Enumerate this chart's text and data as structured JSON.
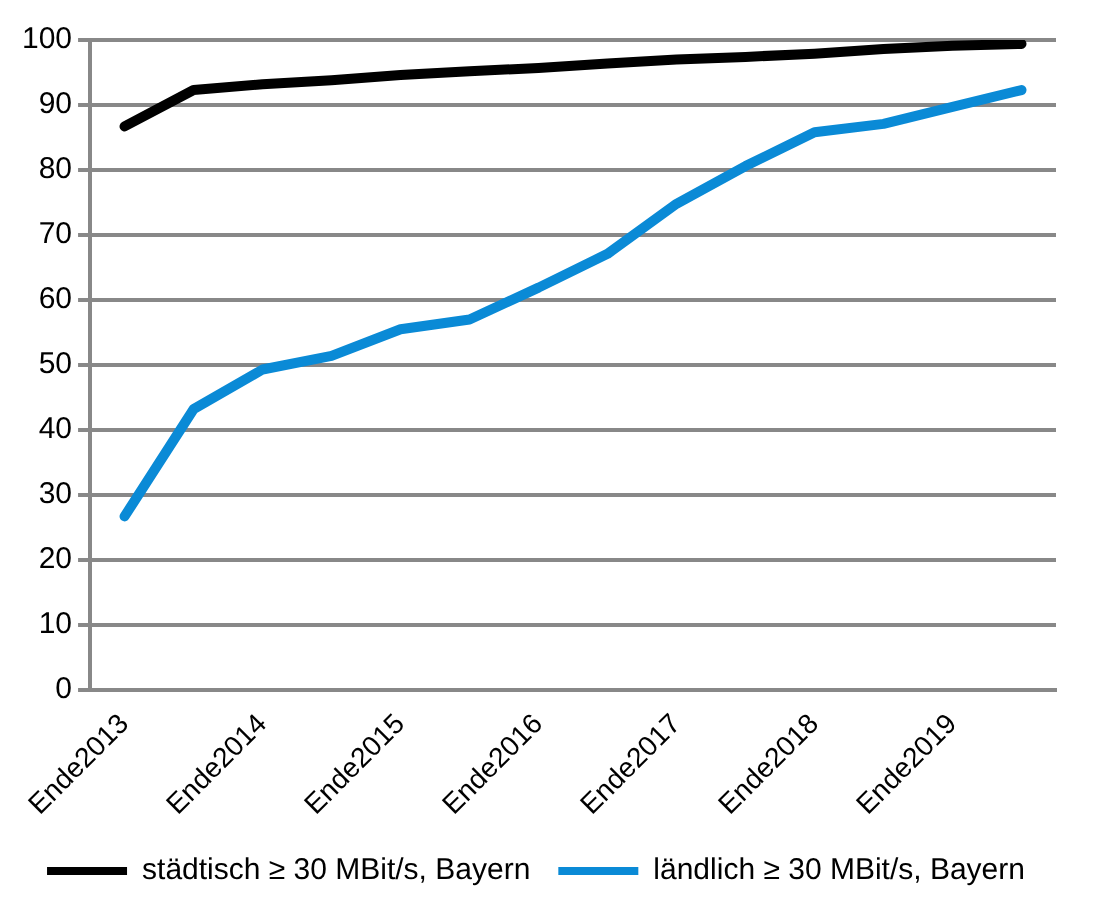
{
  "chart_data": {
    "type": "line",
    "categories": [
      "Ende2013",
      null,
      "Ende2014",
      null,
      "Ende2015",
      null,
      "Ende2016",
      null,
      "Ende2017",
      null,
      "Ende2018",
      null,
      "Ende2019",
      null
    ],
    "series": [
      {
        "name": "städtisch ≥ 30 MBit/s, Bayern",
        "color": "#000000",
        "values": [
          86.7,
          92.3,
          93.2,
          93.8,
          94.6,
          95.2,
          95.7,
          96.4,
          97.0,
          97.4,
          97.9,
          98.6,
          99.1,
          99.4
        ]
      },
      {
        "name": "ländlich ≥ 30 MBit/s, Bayern",
        "color": "#0a8ad6",
        "values": [
          26.7,
          43.2,
          49.3,
          51.4,
          55.5,
          57.0,
          61.9,
          67.1,
          74.8,
          80.6,
          85.8,
          87.1,
          89.7,
          92.3
        ]
      }
    ],
    "ylim": [
      0,
      100
    ],
    "yticks": [
      0,
      10,
      20,
      30,
      40,
      50,
      60,
      70,
      80,
      90,
      100
    ],
    "grid": "y",
    "legend": "bottom",
    "marker": "none",
    "line_style": "solid"
  }
}
